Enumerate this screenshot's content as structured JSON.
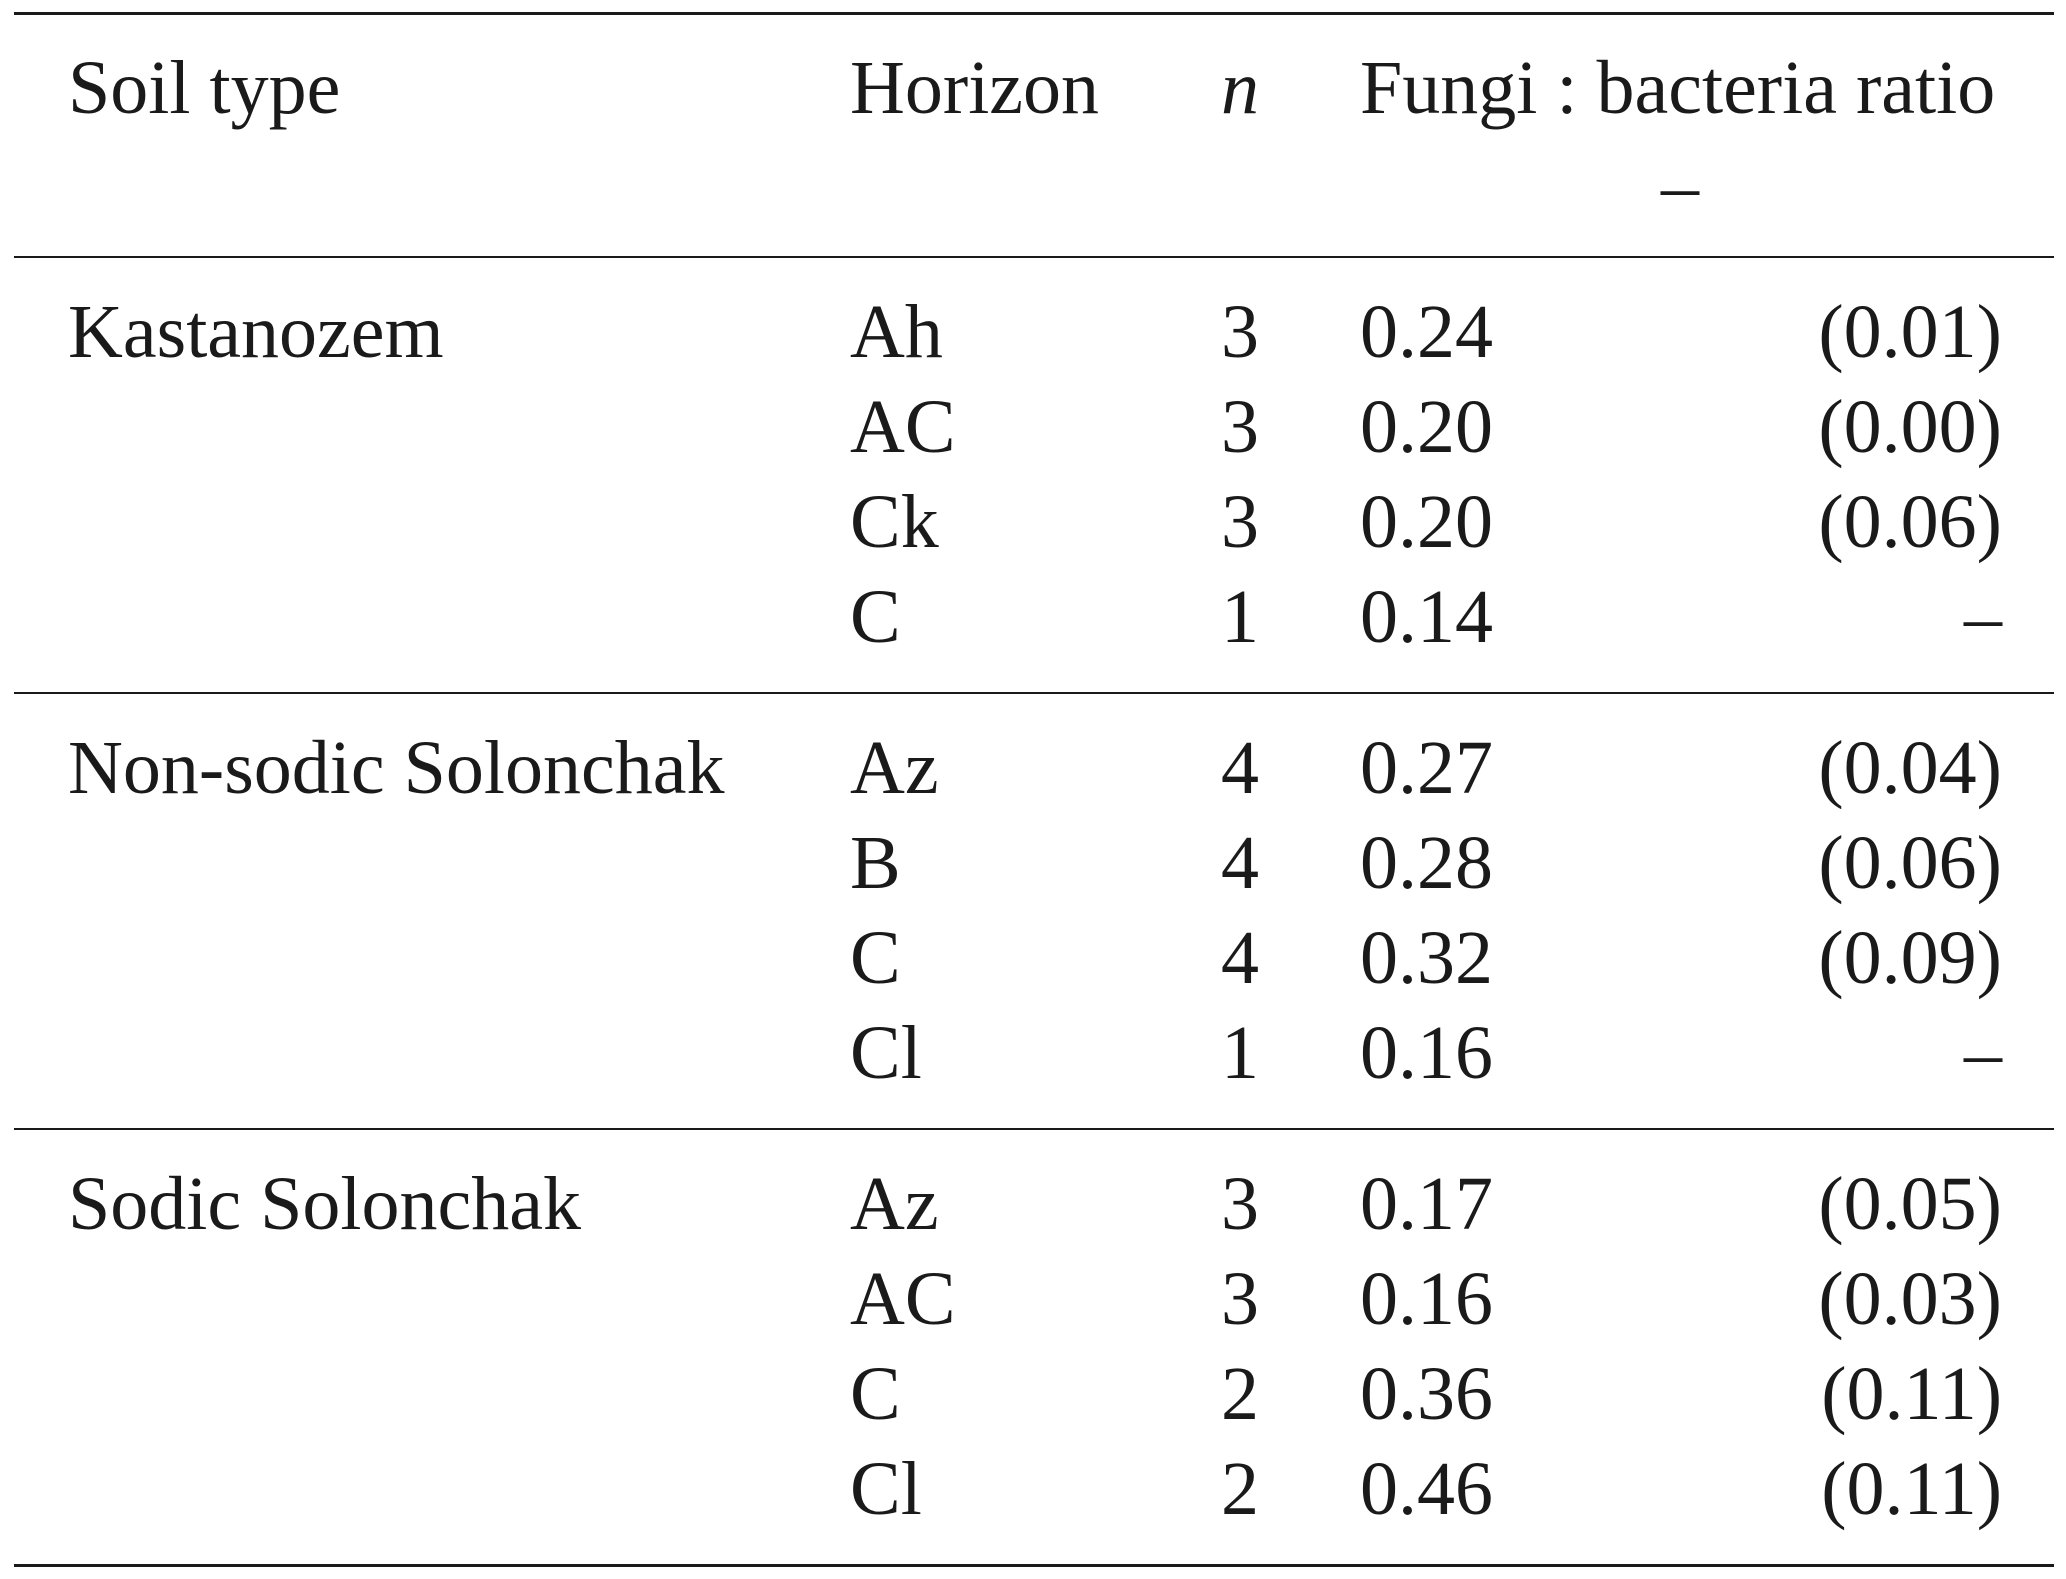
{
  "table": {
    "headers": {
      "soil_type": "Soil type",
      "horizon": "Horizon",
      "n": "n",
      "ratio": "Fungi : bacteria ratio",
      "unit": "–"
    },
    "groups": [
      {
        "soil_type": "Kastanozem",
        "rows": [
          {
            "horizon": "Ah",
            "n": "3",
            "ratio": "0.24",
            "sd": "(0.01)"
          },
          {
            "horizon": "AC",
            "n": "3",
            "ratio": "0.20",
            "sd": "(0.00)"
          },
          {
            "horizon": "Ck",
            "n": "3",
            "ratio": "0.20",
            "sd": "(0.06)"
          },
          {
            "horizon": "C",
            "n": "1",
            "ratio": "0.14",
            "sd": "–"
          }
        ]
      },
      {
        "soil_type": "Non-sodic Solonchak",
        "rows": [
          {
            "horizon": "Az",
            "n": "4",
            "ratio": "0.27",
            "sd": "(0.04)"
          },
          {
            "horizon": "B",
            "n": "4",
            "ratio": "0.28",
            "sd": "(0.06)"
          },
          {
            "horizon": "C",
            "n": "4",
            "ratio": "0.32",
            "sd": "(0.09)"
          },
          {
            "horizon": "Cl",
            "n": "1",
            "ratio": "0.16",
            "sd": "–"
          }
        ]
      },
      {
        "soil_type": "Sodic Solonchak",
        "rows": [
          {
            "horizon": "Az",
            "n": "3",
            "ratio": "0.17",
            "sd": "(0.05)"
          },
          {
            "horizon": "AC",
            "n": "3",
            "ratio": "0.16",
            "sd": "(0.03)"
          },
          {
            "horizon": "C",
            "n": "2",
            "ratio": "0.36",
            "sd": "(0.11)"
          },
          {
            "horizon": "Cl",
            "n": "2",
            "ratio": "0.46",
            "sd": "(0.11)"
          }
        ]
      }
    ]
  }
}
